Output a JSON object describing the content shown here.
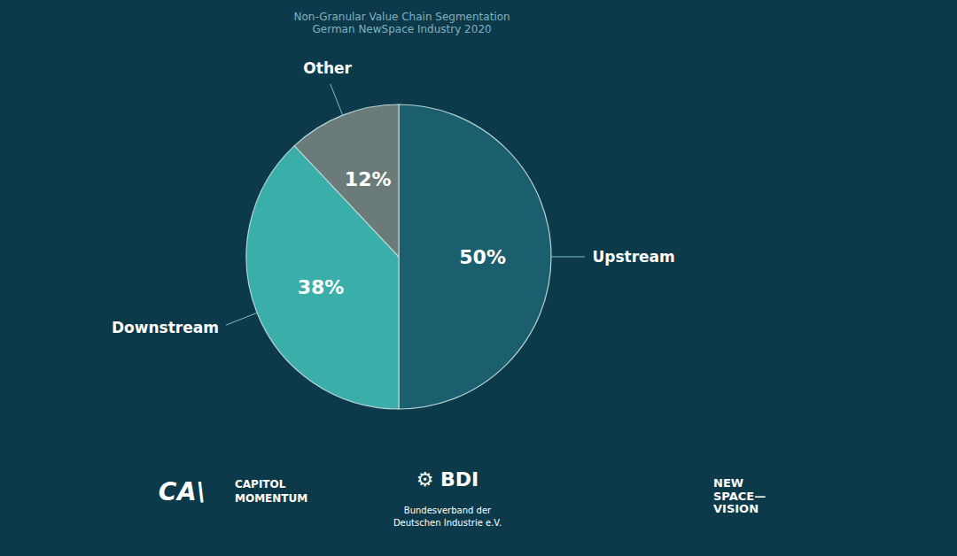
{
  "chart_data": {
    "type": "pie",
    "title": "Non-Granular Value Chain Segmentation\nGerman NewSpace Industry 2020",
    "categories": [
      "Upstream",
      "Downstream",
      "Other"
    ],
    "values": [
      50,
      38,
      12
    ],
    "value_labels": [
      "50%",
      "38%",
      "12%"
    ],
    "colors": [
      "#1b5e6e",
      "#3aafa9",
      "#6b7b7a"
    ],
    "data_labels": true,
    "annotations": [
      "C",
      "A\\",
      "CAPITOL\nMOMENTUM",
      "⚙ BDI",
      "Bundesverband der\nDeutschen Industrie e.V.",
      "NEW\nSPACE—\nVISION"
    ]
  }
}
